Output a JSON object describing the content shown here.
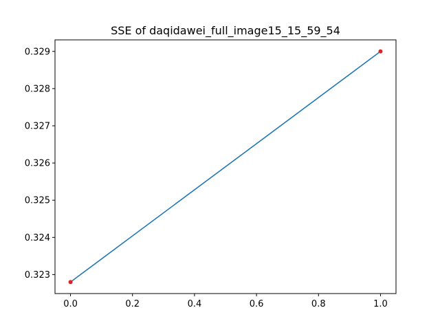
{
  "chart_data": {
    "type": "line",
    "title": "SSE of daqidawei_full_image15_15_59_54",
    "xlabel": "",
    "ylabel": "",
    "xlim": [
      -0.05,
      1.05
    ],
    "ylim": [
      0.32249,
      0.32931
    ],
    "x_ticks": [
      0.0,
      0.2,
      0.4,
      0.6,
      0.8,
      1.0
    ],
    "x_tick_labels": [
      "0.0",
      "0.2",
      "0.4",
      "0.6",
      "0.8",
      "1.0"
    ],
    "y_ticks": [
      0.323,
      0.324,
      0.325,
      0.326,
      0.327,
      0.328,
      0.329
    ],
    "y_tick_labels": [
      "0.323",
      "0.324",
      "0.325",
      "0.326",
      "0.327",
      "0.328",
      "0.329"
    ],
    "grid": false,
    "series": [
      {
        "x": [
          0,
          1
        ],
        "y": [
          0.3228,
          0.329
        ],
        "line_color": "#1f77b4",
        "marker_color": "#d62728"
      }
    ]
  }
}
